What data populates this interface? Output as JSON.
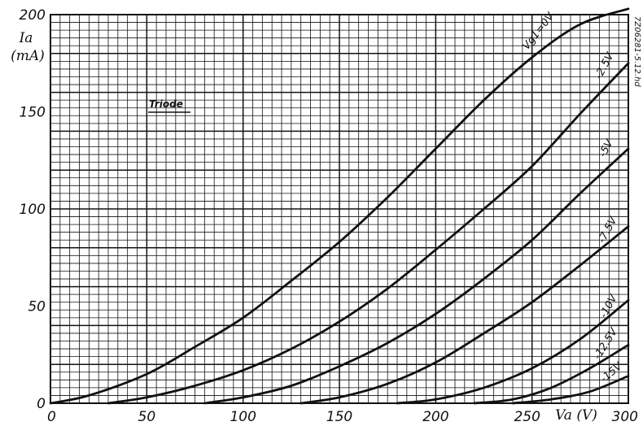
{
  "chart_data": {
    "type": "line",
    "title": "Triode",
    "xlabel": "Va (V)",
    "ylabel": "Ia (mA)",
    "y_label_lines": [
      "Ia",
      "(mA)"
    ],
    "x_label_display": "Va (V)",
    "xlim": [
      0,
      300
    ],
    "ylim": [
      0,
      200
    ],
    "x_ticks": [
      0,
      50,
      100,
      150,
      200,
      250,
      300
    ],
    "y_ticks": [
      0,
      50,
      100,
      150,
      200
    ],
    "grid": true,
    "side_note": "7Z06281-5.12.hd",
    "series": [
      {
        "name": "Vg1=0V",
        "x": [
          0,
          20,
          50,
          75,
          100,
          125,
          150,
          175,
          200,
          225,
          250,
          275,
          300
        ],
        "y": [
          0,
          4,
          15,
          29,
          44,
          63,
          83,
          106,
          131,
          156,
          178,
          195,
          203
        ]
      },
      {
        "name": "-2.5V",
        "x": [
          30,
          50,
          75,
          100,
          125,
          150,
          175,
          200,
          225,
          250,
          275,
          300
        ],
        "y": [
          0,
          3,
          9,
          17,
          28,
          42,
          59,
          79,
          100,
          122,
          149,
          175
        ]
      },
      {
        "name": "-5V",
        "x": [
          80,
          100,
          125,
          150,
          175,
          200,
          225,
          250,
          275,
          300
        ],
        "y": [
          0,
          3,
          9,
          19,
          31,
          46,
          64,
          84,
          108,
          131
        ]
      },
      {
        "name": "-7.5V",
        "x": [
          130,
          150,
          175,
          200,
          225,
          250,
          275,
          300
        ],
        "y": [
          0,
          3,
          10,
          21,
          36,
          52,
          71,
          91
        ]
      },
      {
        "name": "-10V",
        "x": [
          180,
          200,
          225,
          250,
          275,
          300
        ],
        "y": [
          0,
          2,
          8,
          18,
          33,
          53
        ]
      },
      {
        "name": "-12.5V",
        "x": [
          220,
          240,
          260,
          280,
          300
        ],
        "y": [
          0,
          2,
          8,
          18,
          30
        ]
      },
      {
        "name": "-15V",
        "x": [
          240,
          260,
          280,
          300
        ],
        "y": [
          0,
          2,
          6,
          14
        ]
      }
    ]
  }
}
